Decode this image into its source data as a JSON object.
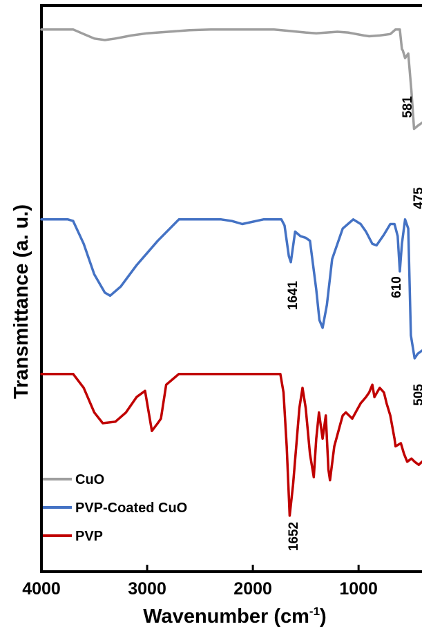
{
  "chart_data": {
    "type": "line",
    "title": "",
    "xlabel": "Wavenumber (cm",
    "xlabel_sup": "-1",
    "xlabel_close": ")",
    "ylabel": "Transmittance (a. u.)",
    "xlim": [
      4000,
      400
    ],
    "x_reversed": true,
    "xticks": [
      4000,
      3000,
      2000,
      1000
    ],
    "xtick_labels": [
      "4000",
      "3000",
      "2000",
      "1000"
    ],
    "yticks": [],
    "grid": false,
    "legend_position": "bottom-left",
    "series": [
      {
        "name": "CuO",
        "color": "#9e9e9e",
        "points": [
          [
            4000,
            0.96
          ],
          [
            3700,
            0.96
          ],
          [
            3600,
            0.93
          ],
          [
            3500,
            0.9
          ],
          [
            3400,
            0.89
          ],
          [
            3300,
            0.9
          ],
          [
            3150,
            0.92
          ],
          [
            3000,
            0.935
          ],
          [
            2800,
            0.945
          ],
          [
            2600,
            0.955
          ],
          [
            2400,
            0.96
          ],
          [
            2000,
            0.96
          ],
          [
            1800,
            0.96
          ],
          [
            1650,
            0.95
          ],
          [
            1500,
            0.94
          ],
          [
            1400,
            0.935
          ],
          [
            1300,
            0.94
          ],
          [
            1200,
            0.945
          ],
          [
            1100,
            0.94
          ],
          [
            950,
            0.92
          ],
          [
            900,
            0.915
          ],
          [
            800,
            0.92
          ],
          [
            700,
            0.93
          ],
          [
            650,
            0.96
          ],
          [
            610,
            0.96
          ],
          [
            590,
            0.83
          ],
          [
            581,
            0.82
          ],
          [
            560,
            0.77
          ],
          [
            530,
            0.8
          ],
          [
            500,
            0.55
          ],
          [
            475,
            0.3
          ],
          [
            440,
            0.32
          ],
          [
            400,
            0.34
          ]
        ]
      },
      {
        "name": "PVP-Coated CuO",
        "color": "#4472c4",
        "points": [
          [
            4000,
            0.96
          ],
          [
            3750,
            0.96
          ],
          [
            3700,
            0.95
          ],
          [
            3600,
            0.8
          ],
          [
            3500,
            0.6
          ],
          [
            3400,
            0.48
          ],
          [
            3350,
            0.46
          ],
          [
            3250,
            0.52
          ],
          [
            3100,
            0.66
          ],
          [
            2900,
            0.82
          ],
          [
            2700,
            0.96
          ],
          [
            2300,
            0.96
          ],
          [
            2200,
            0.95
          ],
          [
            2100,
            0.93
          ],
          [
            1900,
            0.96
          ],
          [
            1730,
            0.96
          ],
          [
            1700,
            0.92
          ],
          [
            1660,
            0.72
          ],
          [
            1641,
            0.68
          ],
          [
            1600,
            0.88
          ],
          [
            1550,
            0.85
          ],
          [
            1500,
            0.84
          ],
          [
            1460,
            0.82
          ],
          [
            1400,
            0.5
          ],
          [
            1370,
            0.3
          ],
          [
            1340,
            0.25
          ],
          [
            1300,
            0.4
          ],
          [
            1250,
            0.7
          ],
          [
            1150,
            0.9
          ],
          [
            1050,
            0.96
          ],
          [
            980,
            0.93
          ],
          [
            930,
            0.88
          ],
          [
            870,
            0.8
          ],
          [
            830,
            0.79
          ],
          [
            760,
            0.86
          ],
          [
            700,
            0.93
          ],
          [
            660,
            0.93
          ],
          [
            630,
            0.85
          ],
          [
            610,
            0.62
          ],
          [
            590,
            0.8
          ],
          [
            560,
            0.96
          ],
          [
            530,
            0.9
          ],
          [
            505,
            0.2
          ],
          [
            470,
            0.05
          ],
          [
            440,
            0.08
          ],
          [
            400,
            0.1
          ]
        ]
      },
      {
        "name": "PVP",
        "color": "#c00000",
        "points": [
          [
            4000,
            0.97
          ],
          [
            3700,
            0.97
          ],
          [
            3600,
            0.88
          ],
          [
            3500,
            0.72
          ],
          [
            3420,
            0.65
          ],
          [
            3300,
            0.66
          ],
          [
            3200,
            0.72
          ],
          [
            3100,
            0.82
          ],
          [
            3020,
            0.86
          ],
          [
            2980,
            0.7
          ],
          [
            2955,
            0.6
          ],
          [
            2900,
            0.65
          ],
          [
            2870,
            0.68
          ],
          [
            2820,
            0.9
          ],
          [
            2700,
            0.97
          ],
          [
            2400,
            0.97
          ],
          [
            2000,
            0.97
          ],
          [
            1800,
            0.97
          ],
          [
            1740,
            0.97
          ],
          [
            1710,
            0.85
          ],
          [
            1680,
            0.5
          ],
          [
            1652,
            0.05
          ],
          [
            1620,
            0.25
          ],
          [
            1560,
            0.75
          ],
          [
            1530,
            0.88
          ],
          [
            1500,
            0.75
          ],
          [
            1460,
            0.45
          ],
          [
            1424,
            0.3
          ],
          [
            1400,
            0.55
          ],
          [
            1375,
            0.72
          ],
          [
            1340,
            0.55
          ],
          [
            1310,
            0.7
          ],
          [
            1285,
            0.35
          ],
          [
            1270,
            0.28
          ],
          [
            1230,
            0.5
          ],
          [
            1170,
            0.65
          ],
          [
            1150,
            0.7
          ],
          [
            1120,
            0.72
          ],
          [
            1060,
            0.68
          ],
          [
            1020,
            0.73
          ],
          [
            980,
            0.78
          ],
          [
            930,
            0.82
          ],
          [
            900,
            0.85
          ],
          [
            870,
            0.9
          ],
          [
            850,
            0.82
          ],
          [
            800,
            0.88
          ],
          [
            760,
            0.85
          ],
          [
            735,
            0.78
          ],
          [
            700,
            0.7
          ],
          [
            660,
            0.55
          ],
          [
            650,
            0.5
          ],
          [
            600,
            0.52
          ],
          [
            570,
            0.45
          ],
          [
            540,
            0.4
          ],
          [
            500,
            0.42
          ],
          [
            470,
            0.4
          ],
          [
            430,
            0.38
          ],
          [
            400,
            0.4
          ]
        ]
      }
    ],
    "annotations": [
      {
        "text": "581",
        "series": 0
      },
      {
        "text": "475",
        "series": 0
      },
      {
        "text": "1641",
        "series": 1
      },
      {
        "text": "610",
        "series": 1
      },
      {
        "text": "505",
        "series": 1
      },
      {
        "text": "1652",
        "series": 2
      }
    ]
  }
}
